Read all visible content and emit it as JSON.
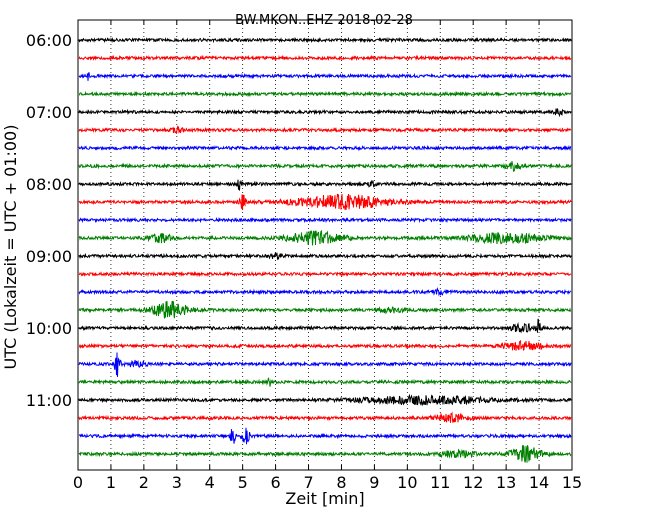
{
  "chart_data": {
    "type": "line",
    "title": "BW.MKON..EHZ 2018-02-28",
    "xlabel": "Zeit  [min]",
    "ylabel": "UTC (Lokalzeit = UTC + 01:00)",
    "xlim": [
      0,
      15
    ],
    "x_ticks": [
      "0",
      "1",
      "2",
      "3",
      "4",
      "5",
      "6",
      "7",
      "8",
      "9",
      "10",
      "11",
      "12",
      "13",
      "14",
      "15"
    ],
    "y_ticks": [
      "06:00",
      "07:00",
      "08:00",
      "09:00",
      "10:00",
      "11:00"
    ],
    "trace_interval_min": 15,
    "grid": "vertical dotted",
    "colors": [
      "#000000",
      "#ff0000",
      "#0000ff",
      "#008000"
    ],
    "traces": [
      {
        "start": "06:00",
        "color": "#000000",
        "events": []
      },
      {
        "start": "06:15",
        "color": "#ff0000",
        "events": []
      },
      {
        "start": "06:30",
        "color": "#0000ff",
        "events": [
          {
            "t": 0.3,
            "amp": 4,
            "dur": 0.1
          }
        ]
      },
      {
        "start": "06:45",
        "color": "#008000",
        "events": []
      },
      {
        "start": "07:00",
        "color": "#000000",
        "events": [
          {
            "t": 14.6,
            "amp": 4,
            "dur": 0.2
          }
        ]
      },
      {
        "start": "07:15",
        "color": "#ff0000",
        "events": [
          {
            "t": 3.0,
            "amp": 2.5,
            "dur": 0.3
          }
        ]
      },
      {
        "start": "07:30",
        "color": "#0000ff",
        "events": []
      },
      {
        "start": "07:45",
        "color": "#008000",
        "events": [
          {
            "t": 13.2,
            "amp": 4,
            "dur": 0.4
          }
        ]
      },
      {
        "start": "08:00",
        "color": "#000000",
        "events": [
          {
            "t": 4.9,
            "amp": 6,
            "dur": 0.1
          },
          {
            "t": 8.9,
            "amp": 3,
            "dur": 0.2
          }
        ]
      },
      {
        "start": "08:15",
        "color": "#ff0000",
        "events": [
          {
            "t": 5.0,
            "amp": 8,
            "dur": 0.15
          },
          {
            "t": 8.0,
            "amp": 7,
            "dur": 2.5
          },
          {
            "t": 14.2,
            "amp": 4,
            "dur": 0.1
          }
        ]
      },
      {
        "start": "08:30",
        "color": "#0000ff",
        "events": []
      },
      {
        "start": "08:45",
        "color": "#008000",
        "events": [
          {
            "t": 2.5,
            "amp": 4,
            "dur": 0.6
          },
          {
            "t": 7.2,
            "amp": 6,
            "dur": 1.5
          },
          {
            "t": 13.0,
            "amp": 5,
            "dur": 2.0
          }
        ]
      },
      {
        "start": "09:00",
        "color": "#000000",
        "events": [
          {
            "t": 6.0,
            "amp": 2.5,
            "dur": 0.3
          }
        ]
      },
      {
        "start": "09:15",
        "color": "#ff0000",
        "events": []
      },
      {
        "start": "09:30",
        "color": "#0000ff",
        "events": [
          {
            "t": 11.0,
            "amp": 2.5,
            "dur": 0.4
          }
        ]
      },
      {
        "start": "09:45",
        "color": "#008000",
        "events": [
          {
            "t": 2.8,
            "amp": 8,
            "dur": 1.0
          },
          {
            "t": 9.5,
            "amp": 2.5,
            "dur": 0.6
          }
        ]
      },
      {
        "start": "10:00",
        "color": "#000000",
        "events": [
          {
            "t": 13.5,
            "amp": 4,
            "dur": 0.6
          },
          {
            "t": 14.0,
            "amp": 12,
            "dur": 0.12
          }
        ]
      },
      {
        "start": "10:15",
        "color": "#ff0000",
        "events": [
          {
            "t": 13.5,
            "amp": 4,
            "dur": 1.0
          }
        ]
      },
      {
        "start": "10:30",
        "color": "#0000ff",
        "events": [
          {
            "t": 1.2,
            "amp": 12,
            "dur": 0.15
          },
          {
            "t": 1.8,
            "amp": 3,
            "dur": 0.5
          }
        ]
      },
      {
        "start": "10:45",
        "color": "#008000",
        "events": [
          {
            "t": 5.8,
            "amp": 5,
            "dur": 0.1
          }
        ]
      },
      {
        "start": "11:00",
        "color": "#000000",
        "events": [
          {
            "t": 10.5,
            "amp": 4,
            "dur": 3.5
          }
        ]
      },
      {
        "start": "11:15",
        "color": "#ff0000",
        "events": [
          {
            "t": 11.3,
            "amp": 4,
            "dur": 0.8
          }
        ]
      },
      {
        "start": "11:30",
        "color": "#0000ff",
        "events": [
          {
            "t": 4.7,
            "amp": 9,
            "dur": 0.12
          },
          {
            "t": 5.1,
            "amp": 7,
            "dur": 0.2
          }
        ]
      },
      {
        "start": "11:45",
        "color": "#008000",
        "events": [
          {
            "t": 11.5,
            "amp": 3,
            "dur": 1.0
          },
          {
            "t": 13.6,
            "amp": 8,
            "dur": 0.8
          }
        ]
      }
    ]
  }
}
